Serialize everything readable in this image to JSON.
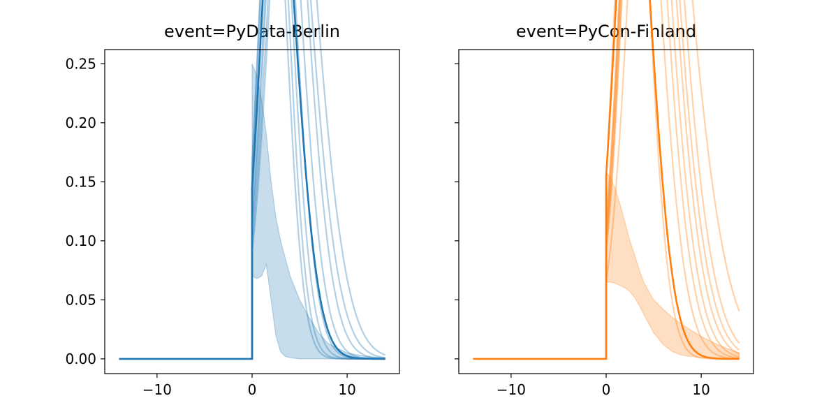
{
  "chart_data": [
    {
      "type": "line",
      "title": "event=PyData-Berlin",
      "xlabel": "",
      "ylabel": "",
      "xlim": [
        -15.5,
        15.5
      ],
      "ylim": [
        -0.0125,
        0.262
      ],
      "xticks": [
        -10,
        0,
        10
      ],
      "xtick_labels": [
        "−10",
        "0",
        "10"
      ],
      "yticks": [
        0.0,
        0.05,
        0.1,
        0.15,
        0.2,
        0.25
      ],
      "ytick_labels": [
        "0.00",
        "0.05",
        "0.10",
        "0.15",
        "0.20",
        "0.25"
      ],
      "y_ticklabels_shown": true,
      "color": "#1f77b4",
      "grid": false,
      "series_x_range": [
        -14,
        14
      ],
      "band": {
        "x": [
          0,
          0.5,
          1,
          1.5,
          2,
          2.5,
          3,
          3.5,
          4,
          5,
          6,
          7,
          8,
          10,
          12,
          14
        ],
        "upper": [
          0.25,
          0.24,
          0.22,
          0.19,
          0.15,
          0.12,
          0.1,
          0.085,
          0.07,
          0.05,
          0.035,
          0.022,
          0.013,
          0.005,
          0.002,
          0.001
        ],
        "lower": [
          0.07,
          0.068,
          0.07,
          0.08,
          0.05,
          0.02,
          0.006,
          0.002,
          0.001,
          0.0,
          0.0,
          0.0,
          0.0,
          0.0,
          0.0,
          0.0
        ]
      },
      "draws": [
        {
          "peak": 0.167,
          "mu": 1.2,
          "sigma": 1.9,
          "skew": 1.5
        },
        {
          "peak": 0.16,
          "mu": 1.3,
          "sigma": 2.0,
          "skew": 1.6
        },
        {
          "peak": 0.145,
          "mu": 1.4,
          "sigma": 2.2,
          "skew": 1.8
        },
        {
          "peak": 0.135,
          "mu": 1.5,
          "sigma": 2.4,
          "skew": 2.0
        },
        {
          "peak": 0.118,
          "mu": 1.7,
          "sigma": 2.7,
          "skew": 2.2
        },
        {
          "peak": 0.11,
          "mu": 1.9,
          "sigma": 3.0,
          "skew": 2.4
        },
        {
          "peak": 0.1,
          "mu": 2.0,
          "sigma": 3.3,
          "skew": 2.6
        },
        {
          "peak": 0.09,
          "mu": 2.2,
          "sigma": 3.6,
          "skew": 2.8
        }
      ],
      "main": {
        "peak": 0.145,
        "mu": 1.3,
        "sigma": 2.6,
        "skew": 2.2
      }
    },
    {
      "type": "line",
      "title": "event=PyCon-Finland",
      "xlabel": "",
      "ylabel": "",
      "xlim": [
        -15.5,
        15.5
      ],
      "ylim": [
        -0.0125,
        0.262
      ],
      "xticks": [
        -10,
        0,
        10
      ],
      "xtick_labels": [
        "−10",
        "0",
        "10"
      ],
      "yticks": [
        0.0,
        0.05,
        0.1,
        0.15,
        0.2,
        0.25
      ],
      "ytick_labels": [
        "0.00",
        "0.05",
        "0.10",
        "0.15",
        "0.20",
        "0.25"
      ],
      "y_ticklabels_shown": false,
      "color": "#ff7f0e",
      "grid": false,
      "series_x_range": [
        -14,
        14
      ],
      "band": {
        "x": [
          0,
          0.5,
          1,
          1.5,
          2,
          2.5,
          3,
          3.5,
          4,
          5,
          6,
          7,
          8,
          10,
          12,
          14
        ],
        "upper": [
          0.158,
          0.153,
          0.143,
          0.13,
          0.115,
          0.1,
          0.088,
          0.075,
          0.064,
          0.05,
          0.042,
          0.035,
          0.029,
          0.019,
          0.011,
          0.005
        ],
        "lower": [
          0.065,
          0.065,
          0.064,
          0.062,
          0.06,
          0.057,
          0.052,
          0.045,
          0.037,
          0.022,
          0.012,
          0.006,
          0.003,
          0.001,
          0.0,
          0.0
        ]
      },
      "draws": [
        {
          "peak": 0.155,
          "mu": 1.5,
          "sigma": 2.3,
          "skew": 1.8
        },
        {
          "peak": 0.115,
          "mu": 1.8,
          "sigma": 3.0,
          "skew": 2.5
        },
        {
          "peak": 0.11,
          "mu": 2.0,
          "sigma": 3.2,
          "skew": 2.6
        },
        {
          "peak": 0.104,
          "mu": 2.1,
          "sigma": 3.4,
          "skew": 2.8
        },
        {
          "peak": 0.1,
          "mu": 2.2,
          "sigma": 3.6,
          "skew": 3.0
        },
        {
          "peak": 0.095,
          "mu": 2.3,
          "sigma": 3.8,
          "skew": 3.1
        },
        {
          "peak": 0.09,
          "mu": 2.4,
          "sigma": 4.0,
          "skew": 3.3
        },
        {
          "peak": 0.065,
          "mu": 2.8,
          "sigma": 4.6,
          "skew": 3.6
        }
      ],
      "main": {
        "peak": 0.155,
        "mu": 1.4,
        "sigma": 2.6,
        "skew": 2.0
      }
    }
  ]
}
